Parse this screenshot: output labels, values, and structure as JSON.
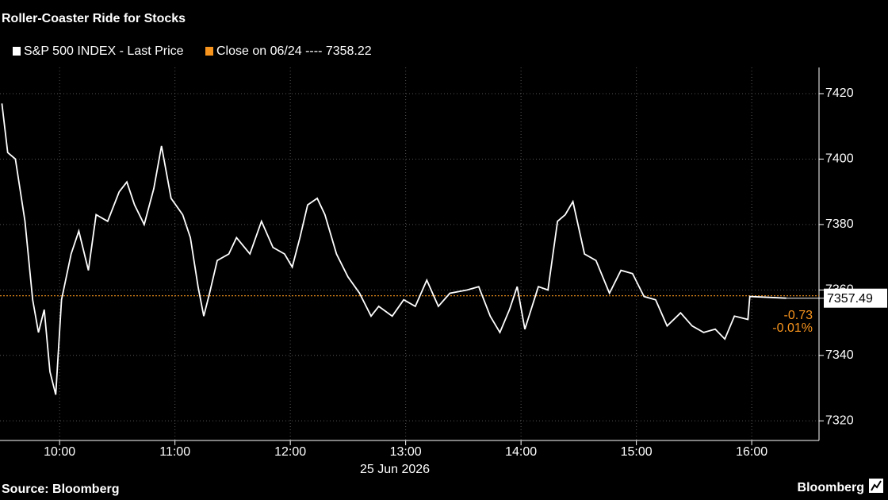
{
  "chart_data": {
    "type": "line",
    "title": "Roller-Coaster Ride for Stocks",
    "x_label": "25 Jun 2026",
    "source": "Source: Bloomberg",
    "logo": "Bloomberg",
    "xlim": [
      569,
      995
    ],
    "xticks": [
      {
        "value": 600,
        "label": "10:00"
      },
      {
        "value": 660,
        "label": "11:00"
      },
      {
        "value": 720,
        "label": "12:00"
      },
      {
        "value": 780,
        "label": "13:00"
      },
      {
        "value": 840,
        "label": "14:00"
      },
      {
        "value": 900,
        "label": "15:00"
      },
      {
        "value": 960,
        "label": "16:00"
      }
    ],
    "ylim": [
      7314,
      7428
    ],
    "yticks": [
      7320,
      7340,
      7360,
      7380,
      7400,
      7420
    ],
    "grid": true,
    "series": [
      {
        "name": "S&P 500 INDEX - Last Price",
        "color": "#ffffff",
        "x": [
          570,
          573,
          577,
          582,
          586,
          589,
          592,
          595,
          598,
          601,
          606,
          610,
          615,
          619,
          625,
          631,
          635,
          639,
          644,
          649,
          653,
          658,
          664,
          668,
          672,
          675,
          678,
          682,
          688,
          692,
          699,
          705,
          711,
          717,
          721,
          725,
          729,
          734,
          738,
          744,
          750,
          756,
          762,
          766,
          773,
          779,
          785,
          791,
          797,
          803,
          812,
          818,
          824,
          829,
          834,
          838,
          842,
          849,
          854,
          859,
          863,
          867,
          873,
          879,
          886,
          892,
          898,
          904,
          910,
          916,
          923,
          929,
          935,
          941,
          946,
          951,
          958,
          959,
          978
        ],
        "values": [
          7417,
          7402,
          7400,
          7381,
          7357,
          7347,
          7354,
          7335,
          7328,
          7357,
          7371,
          7378,
          7366,
          7383,
          7381,
          7390,
          7393,
          7386,
          7380,
          7391,
          7404,
          7388,
          7383,
          7376,
          7361,
          7352,
          7359,
          7369,
          7371,
          7376,
          7371,
          7381,
          7373,
          7371,
          7367,
          7376,
          7386,
          7388,
          7383,
          7371,
          7364,
          7359,
          7352,
          7355,
          7352,
          7357,
          7355,
          7363,
          7355,
          7359,
          7360,
          7361,
          7352,
          7347,
          7354,
          7361,
          7348,
          7361,
          7360,
          7381,
          7383,
          7387,
          7371,
          7369,
          7359,
          7366,
          7365,
          7358,
          7357,
          7349,
          7353,
          7349,
          7347,
          7348,
          7345,
          7352,
          7351,
          7358,
          7357.49
        ]
      }
    ],
    "reference_line": {
      "label": "Close on 06/24 ---- 7358.22",
      "value": 7358.22,
      "color": "#f7941d"
    },
    "annotations": [
      "-0.73",
      "-0.01%"
    ]
  }
}
